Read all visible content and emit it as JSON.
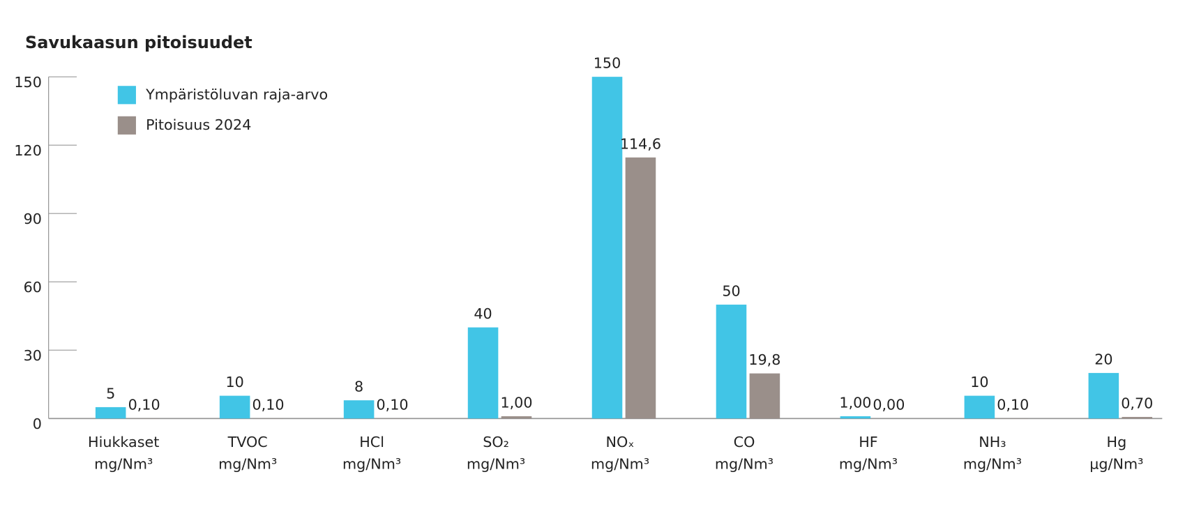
{
  "chart_data": {
    "type": "bar",
    "title": "Savukaasun pitoisuudet",
    "categories": [
      "Hiukkaset",
      "TVOC",
      "HCl",
      "SO₂",
      "NOₓ",
      "CO",
      "HF",
      "NH₃",
      "Hg"
    ],
    "category_units": [
      "mg/Nm³",
      "mg/Nm³",
      "mg/Nm³",
      "mg/Nm³",
      "mg/Nm³",
      "mg/Nm³",
      "mg/Nm³",
      "mg/Nm³",
      "µg/Nm³"
    ],
    "series": [
      {
        "name": "Ympäristöluvan raja-arvo",
        "color": "#41c5e6",
        "values": [
          5,
          10,
          8,
          40,
          150,
          50,
          1,
          10,
          20
        ],
        "value_labels": [
          "5",
          "10",
          "8",
          "40",
          "150",
          "50",
          "1,00",
          "10",
          "20"
        ]
      },
      {
        "name": "Pitoisuus 2024",
        "color": "#9a8f8a",
        "values": [
          0.1,
          0.1,
          0.1,
          1,
          114.6,
          19.8,
          0,
          0.1,
          0.7
        ],
        "value_labels": [
          "0,10",
          "0,10",
          "0,10",
          "1,00",
          "114,6",
          "19,8",
          "0,00",
          "0,10",
          "0,70"
        ]
      }
    ],
    "ylim": [
      0,
      150
    ],
    "yticks": [
      0,
      30,
      60,
      90,
      120,
      150
    ],
    "legend": "top-left",
    "grid": false
  }
}
